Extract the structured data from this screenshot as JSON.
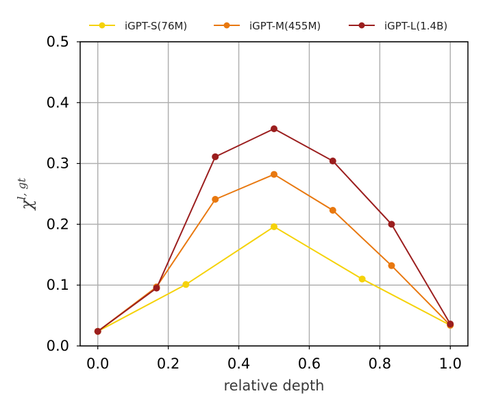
{
  "chart_data": {
    "type": "line",
    "xlabel": "relative depth",
    "ylabel_main": "χ",
    "ylabel_sup": "l, gt",
    "xlim": [
      -0.05,
      1.05
    ],
    "ylim": [
      0.0,
      0.5
    ],
    "xticks": [
      0.0,
      0.2,
      0.4,
      0.6,
      0.8,
      1.0
    ],
    "xtick_labels": [
      "0.0",
      "0.2",
      "0.4",
      "0.6",
      "0.8",
      "1.0"
    ],
    "yticks": [
      0.0,
      0.1,
      0.2,
      0.3,
      0.4,
      0.5
    ],
    "ytick_labels": [
      "0.0",
      "0.1",
      "0.2",
      "0.3",
      "0.4",
      "0.5"
    ],
    "grid": true,
    "legend_position": "top",
    "series": [
      {
        "name": "iGPT-S(76M)",
        "color": "#f5d20a",
        "x": [
          0.0,
          0.25,
          0.5,
          0.75,
          1.0
        ],
        "y": [
          0.024,
          0.101,
          0.196,
          0.11,
          0.034
        ]
      },
      {
        "name": "iGPT-M(455M)",
        "color": "#e8780f",
        "x": [
          0.0,
          0.1667,
          0.3333,
          0.5,
          0.6667,
          0.8333,
          1.0
        ],
        "y": [
          0.024,
          0.097,
          0.241,
          0.282,
          0.223,
          0.132,
          0.034
        ]
      },
      {
        "name": "iGPT-L(1.4B)",
        "color": "#9b1e1e",
        "x": [
          0.0,
          0.1667,
          0.3333,
          0.5,
          0.6667,
          0.8333,
          1.0
        ],
        "y": [
          0.024,
          0.095,
          0.311,
          0.357,
          0.304,
          0.2,
          0.036
        ]
      }
    ]
  }
}
